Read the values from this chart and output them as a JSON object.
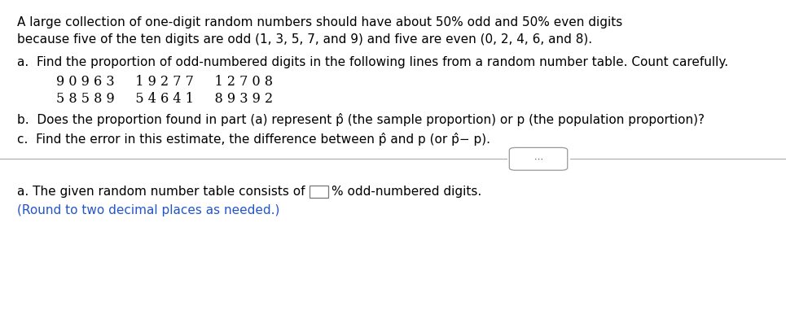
{
  "bg_color": "#ffffff",
  "text_color": "#000000",
  "blue_color": "#2255cc",
  "intro_line1": "A large collection of one-digit random numbers should have about 50% odd and 50% even digits",
  "intro_line2": "because five of the ten digits are odd (1, 3, 5, 7, and 9) and five are even (0, 2, 4, 6, and 8).",
  "part_a_label": "a.  Find the proportion of odd-numbered digits in the following lines from a random number table. Count carefully.",
  "row1": "9 0 9 6 3     1 9 2 7 7     1 2 7 0 8",
  "row2": "5 8 5 8 9     5 4 6 4 1     8 9 3 9 2",
  "part_b": "b.  Does the proportion found in part (a) represent p̂ (the sample proportion) or p (the population proportion)?",
  "part_c": "c.  Find the error in this estimate, the difference between p̂ and p (or p̂− p).",
  "answer_line1_pre": "a. The given random number table consists of ",
  "answer_line1_post": "% odd-numbered digits.",
  "answer_line2": "(Round to two decimal places as needed.)",
  "font_size": 11.0,
  "font_size_digits": 11.5,
  "line_color": "#aaaaaa",
  "dots_color": "#555555",
  "box_edge_color": "#777777"
}
